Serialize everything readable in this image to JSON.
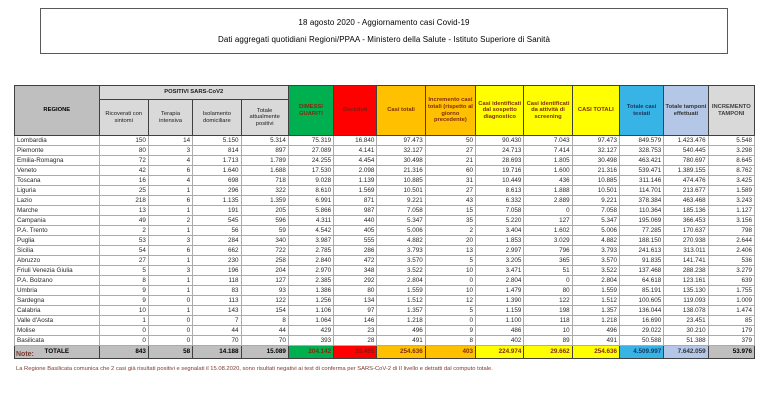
{
  "title": {
    "line1": "18 agosto 2020 - Aggiornamento casi Covid-19",
    "line2": "Dati aggregati quotidiani Regioni/PPAA - Ministero della Salute - Istituto Superiore di Sanità"
  },
  "table": {
    "headers": {
      "regione": "REGIONE",
      "positivi_group": "POSITIVI SARS-CoV2",
      "positivi_sub": [
        "Ricoverati con sintomi",
        "Terapia intensiva",
        "Isolamento domiciliare",
        "Totale attualmente positivi"
      ],
      "dimessi": "DIMESSI GUARITI",
      "deceduti": "Deceduti",
      "casi_totali": "Casi totali",
      "incremento": "Incremento casi totali (rispetto al giorno precedente)",
      "sospetto": "Casi identificati dal sospetto diagnostico",
      "screening": "Casi identificati da attività di screening",
      "casi_totali_2": "CASI TOTALI",
      "testati": "Totale casi testati",
      "tamponi": "Totale tamponi effettuati",
      "incremento_tamponi": "INCREMENTO TAMPONI"
    },
    "columns_order": [
      "ricoverati_con_sintomi",
      "terapia_intensiva",
      "isolamento_domiciliare",
      "totale_attualmente_positivi",
      "dimessi_guariti",
      "deceduti",
      "casi_totali",
      "incremento_casi_totali",
      "casi_sospetto_diagnostico",
      "casi_screening",
      "casi_totali_2",
      "totale_casi_testati",
      "totale_tamponi",
      "incremento_tamponi"
    ],
    "rows": [
      {
        "region": "Lombardia",
        "values": [
          "150",
          "14",
          "5.150",
          "5.314",
          "75.319",
          "16.840",
          "97.473",
          "50",
          "90.430",
          "7.043",
          "97.473",
          "849.579",
          "1.423.476",
          "5.548"
        ]
      },
      {
        "region": "Piemonte",
        "values": [
          "80",
          "3",
          "814",
          "897",
          "27.089",
          "4.141",
          "32.127",
          "27",
          "24.713",
          "7.414",
          "32.127",
          "328.753",
          "540.445",
          "3.298"
        ]
      },
      {
        "region": "Emilia-Romagna",
        "values": [
          "72",
          "4",
          "1.713",
          "1.789",
          "24.255",
          "4.454",
          "30.498",
          "21",
          "28.693",
          "1.805",
          "30.498",
          "463.421",
          "780.697",
          "8.645"
        ]
      },
      {
        "region": "Veneto",
        "values": [
          "42",
          "6",
          "1.640",
          "1.688",
          "17.530",
          "2.098",
          "21.316",
          "60",
          "19.716",
          "1.600",
          "21.316",
          "539.471",
          "1.389.155",
          "8.762"
        ]
      },
      {
        "region": "Toscana",
        "values": [
          "16",
          "4",
          "698",
          "718",
          "9.028",
          "1.139",
          "10.885",
          "31",
          "10.449",
          "436",
          "10.885",
          "311.146",
          "474.476",
          "3.425"
        ]
      },
      {
        "region": "Liguria",
        "values": [
          "25",
          "1",
          "296",
          "322",
          "8.610",
          "1.569",
          "10.501",
          "27",
          "8.613",
          "1.888",
          "10.501",
          "114.701",
          "213.677",
          "1.589"
        ]
      },
      {
        "region": "Lazio",
        "values": [
          "218",
          "6",
          "1.135",
          "1.359",
          "6.991",
          "871",
          "9.221",
          "43",
          "6.332",
          "2.889",
          "9.221",
          "378.384",
          "463.468",
          "3.243"
        ]
      },
      {
        "region": "Marche",
        "values": [
          "13",
          "1",
          "191",
          "205",
          "5.866",
          "987",
          "7.058",
          "15",
          "7.058",
          "0",
          "7.058",
          "110.364",
          "185.136",
          "1.127"
        ]
      },
      {
        "region": "Campania",
        "values": [
          "49",
          "2",
          "545",
          "596",
          "4.311",
          "440",
          "5.347",
          "35",
          "5.220",
          "127",
          "5.347",
          "195.069",
          "366.453",
          "3.156"
        ]
      },
      {
        "region": "P.A. Trento",
        "values": [
          "2",
          "1",
          "56",
          "59",
          "4.542",
          "405",
          "5.006",
          "2",
          "3.404",
          "1.602",
          "5.006",
          "77.285",
          "170.637",
          "798"
        ]
      },
      {
        "region": "Puglia",
        "values": [
          "53",
          "3",
          "284",
          "340",
          "3.987",
          "555",
          "4.882",
          "20",
          "1.853",
          "3.029",
          "4.882",
          "188.150",
          "270.938",
          "2.644"
        ]
      },
      {
        "region": "Sicilia",
        "values": [
          "54",
          "6",
          "662",
          "722",
          "2.785",
          "286",
          "3.793",
          "13",
          "2.997",
          "796",
          "3.793",
          "241.613",
          "313.011",
          "2.406"
        ]
      },
      {
        "region": "Abruzzo",
        "values": [
          "27",
          "1",
          "230",
          "258",
          "2.840",
          "472",
          "3.570",
          "5",
          "3.205",
          "365",
          "3.570",
          "91.835",
          "141.741",
          "536"
        ]
      },
      {
        "region": "Friuli Venezia Giulia",
        "values": [
          "5",
          "3",
          "196",
          "204",
          "2.970",
          "348",
          "3.522",
          "10",
          "3.471",
          "51",
          "3.522",
          "137.468",
          "288.238",
          "3.279"
        ]
      },
      {
        "region": "P.A. Bolzano",
        "values": [
          "8",
          "1",
          "118",
          "127",
          "2.385",
          "292",
          "2.804",
          "0",
          "2.804",
          "0",
          "2.804",
          "64.618",
          "123.161",
          "639"
        ]
      },
      {
        "region": "Umbria",
        "values": [
          "9",
          "1",
          "83",
          "93",
          "1.386",
          "80",
          "1.559",
          "10",
          "1.479",
          "80",
          "1.559",
          "85.191",
          "135.130",
          "1.755"
        ]
      },
      {
        "region": "Sardegna",
        "values": [
          "9",
          "0",
          "113",
          "122",
          "1.256",
          "134",
          "1.512",
          "12",
          "1.390",
          "122",
          "1.512",
          "100.605",
          "119.093",
          "1.009"
        ]
      },
      {
        "region": "Calabria",
        "values": [
          "10",
          "1",
          "143",
          "154",
          "1.106",
          "97",
          "1.357",
          "5",
          "1.159",
          "198",
          "1.357",
          "136.044",
          "138.078",
          "1.474"
        ]
      },
      {
        "region": "Valle d'Aosta",
        "values": [
          "1",
          "0",
          "7",
          "8",
          "1.064",
          "146",
          "1.218",
          "0",
          "1.100",
          "118",
          "1.218",
          "16.690",
          "23.451",
          "85"
        ]
      },
      {
        "region": "Molise",
        "values": [
          "0",
          "0",
          "44",
          "44",
          "429",
          "23",
          "496",
          "9",
          "486",
          "10",
          "496",
          "29.022",
          "30.210",
          "179"
        ]
      },
      {
        "region": "Basilicata",
        "values": [
          "0",
          "0",
          "70",
          "70",
          "393",
          "28",
          "491",
          "8",
          "402",
          "89",
          "491",
          "50.588",
          "51.388",
          "379"
        ]
      }
    ],
    "totale": {
      "label": "TOTALE",
      "values": [
        "843",
        "58",
        "14.188",
        "15.089",
        "204.142",
        "35.405",
        "254.636",
        "403",
        "224.974",
        "29.662",
        "254.636",
        "4.509.997",
        "7.642.059",
        "53.976"
      ]
    }
  },
  "note": {
    "label": "Note:",
    "text": "La Regione Basilicata comunica che 2 casi già risultati positivi e segnalati il 15.08.2020, sono risultati negativi ai test di conferma per SARS-CoV-2 di II livello e detratti dal computo totale."
  },
  "colors": {
    "green": "#00B050",
    "red": "#FF0000",
    "orange": "#FFC000",
    "yellow": "#FFFF00",
    "blue": "#38B3E6",
    "light_blue": "#B4C7E7",
    "mid_gray": "#BFBFBF",
    "light_gray": "#D9D9D9",
    "header_warm_text": "#7F2D0B"
  }
}
